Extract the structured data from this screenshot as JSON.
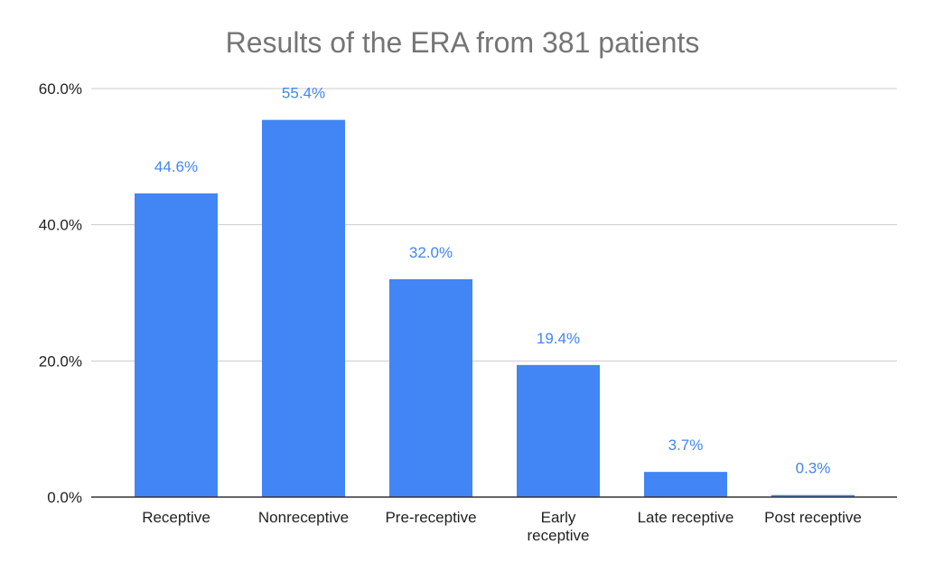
{
  "chart_data": {
    "type": "bar",
    "title": "Results of the ERA from 381 patients",
    "xlabel": "",
    "ylabel": "",
    "categories": [
      [
        "Receptive"
      ],
      [
        "Nonreceptive"
      ],
      [
        "Pre-receptive"
      ],
      [
        "Early",
        "receptive"
      ],
      [
        "Late receptive"
      ],
      [
        "Post receptive"
      ]
    ],
    "values": [
      44.6,
      55.4,
      32.0,
      19.4,
      3.7,
      0.3
    ],
    "data_labels": [
      "44.6%",
      "55.4%",
      "32.0%",
      "19.4%",
      "3.7%",
      "0.3%"
    ],
    "yticks": [
      0,
      20,
      40,
      60
    ],
    "ytick_labels": [
      "0.0%",
      "20.0%",
      "40.0%",
      "60.0%"
    ],
    "ylim": [
      0,
      60
    ],
    "grid": true,
    "legend": "none",
    "colors": {
      "bar": "#4285f4",
      "data_label": "#4285f4",
      "title": "#757575",
      "grid": "#cccccc",
      "axis_text": "#222222"
    }
  }
}
